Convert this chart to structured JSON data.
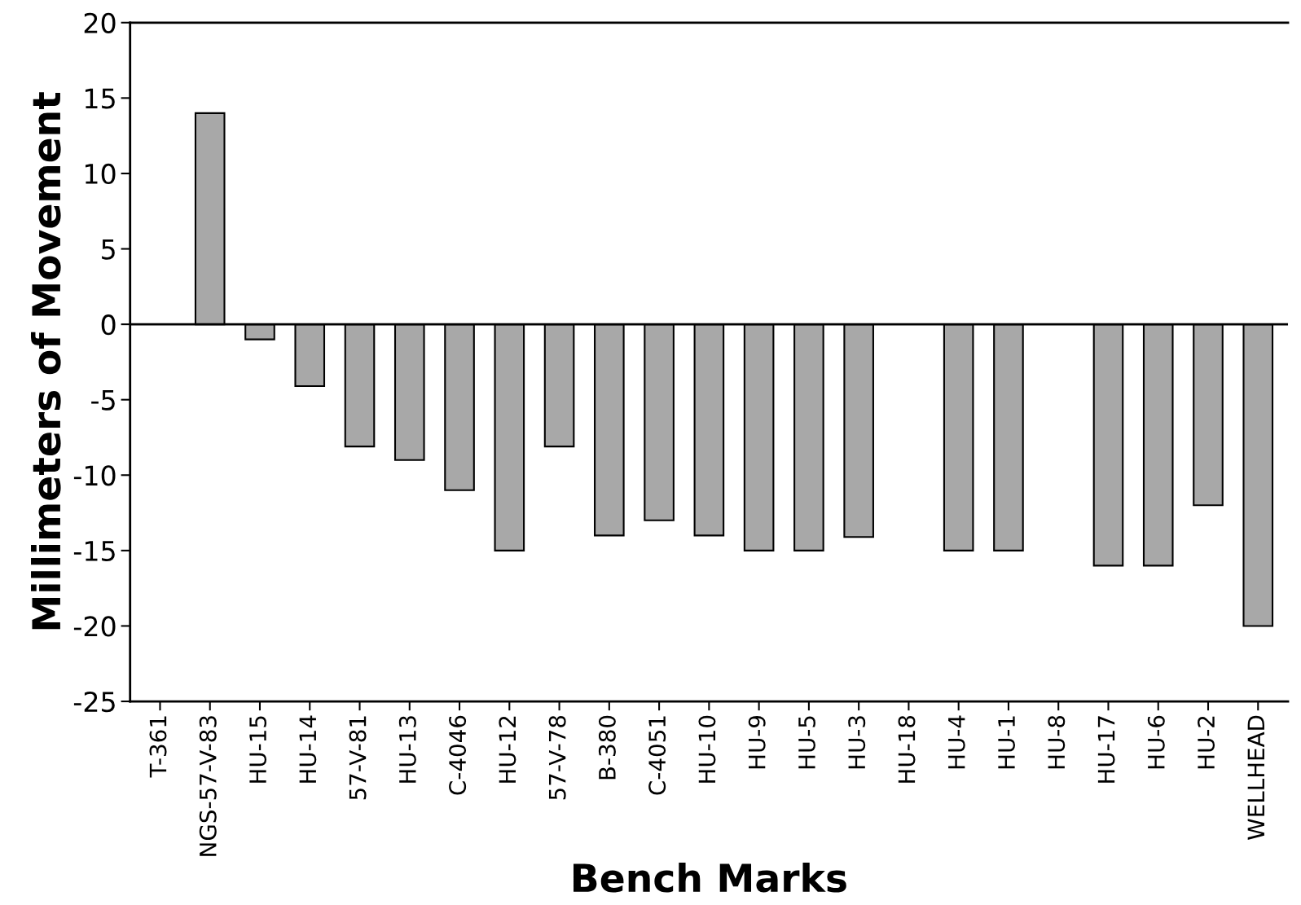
{
  "chart_data": {
    "type": "bar",
    "xlabel": "Bench Marks",
    "ylabel": "Millimeters of Movement",
    "categories": [
      "T-361",
      "NGS-57-V-83",
      "HU-15",
      "HU-14",
      "57-V-81",
      "HU-13",
      "C-4046",
      "HU-12",
      "57-V-78",
      "B-380",
      "C-4051",
      "HU-10",
      "HU-9",
      "HU-5",
      "HU-3",
      "HU-18",
      "HU-4",
      "HU-1",
      "HU-8",
      "HU-17",
      "HU-6",
      "HU-2",
      "WELLHEAD"
    ],
    "values": [
      null,
      14,
      -1,
      -4.1,
      -8.1,
      -9,
      -11,
      -15,
      -8.1,
      -14,
      -13,
      -14,
      -15,
      -15,
      -14.1,
      null,
      -15,
      -15,
      null,
      -16,
      -16,
      -12,
      -20
    ],
    "color": "#a8a8a8",
    "ylim": [
      -25,
      20
    ],
    "yticks": [
      -25,
      -20,
      -15,
      -10,
      -5,
      0,
      5,
      10,
      15,
      20
    ],
    "ref_lines": [
      {
        "axis": "y",
        "value": 0,
        "color": "#000000"
      }
    ],
    "grid": false
  }
}
